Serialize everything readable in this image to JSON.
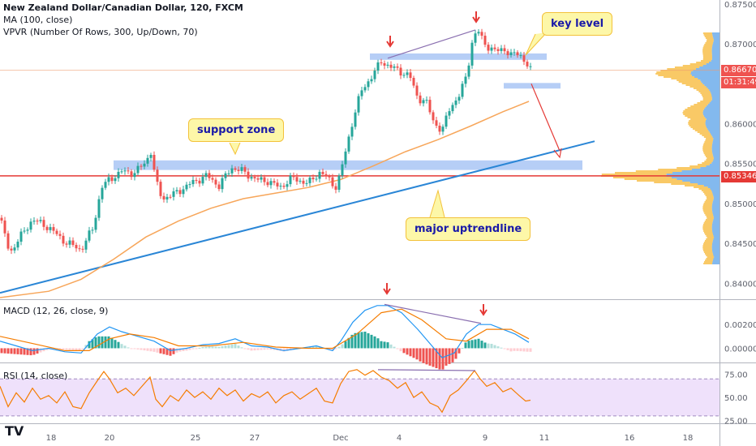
{
  "header": {
    "title": "New Zealand Dollar/Canadian Dollar, 120, FXCM",
    "indicators": [
      "MA (100, close)",
      "VPVR (Number Of Rows, 300, Up/Down, 70)"
    ]
  },
  "annotations": {
    "key_level": "key level",
    "support_zone": "support zone",
    "major_uptrendline": "major uptrendline"
  },
  "price_tags": {
    "last": "0.86670",
    "countdown": "01:31:49",
    "line": "0.85346"
  },
  "macd_label": "MACD (12, 26, close, 9)",
  "rsi_label": "RSI (14, close)",
  "colors": {
    "up": "#26a69a",
    "down": "#ef5350",
    "ma": "#f7a65a",
    "trendline": "#2a86d6",
    "zone": "#a9c6f5",
    "hline": "#e53935",
    "arrow": "#e53935",
    "divergence": "#8a6fb0",
    "macd_line": "#2196f3",
    "signal_line": "#f57c00",
    "rsi_line": "#f57c00",
    "rsi_band": "#efe1fb",
    "vp_up": "#5aa1e8",
    "vp_down": "#f7b733"
  },
  "chart_data": [
    {
      "type": "candlestick",
      "title": "New Zealand Dollar/Canadian Dollar, 120, FXCM",
      "x_ticks": [
        "18",
        "20",
        "25",
        "27",
        "Dec",
        "4",
        "9",
        "11",
        "16",
        "18"
      ],
      "y_ticks": [
        "0.87500",
        "0.87000",
        "0.86500",
        "0.86000",
        "0.85500",
        "0.85000",
        "0.84500",
        "0.84000"
      ],
      "ylim": [
        0.838,
        0.8755
      ],
      "price_path": [
        [
          0,
          0.8482
        ],
        [
          12,
          0.8438
        ],
        [
          25,
          0.8458
        ],
        [
          40,
          0.848
        ],
        [
          60,
          0.847
        ],
        [
          80,
          0.8452
        ],
        [
          100,
          0.8442
        ],
        [
          115,
          0.847
        ],
        [
          125,
          0.852
        ],
        [
          135,
          0.853
        ],
        [
          150,
          0.854
        ],
        [
          165,
          0.8538
        ],
        [
          178,
          0.855
        ],
        [
          186,
          0.8565
        ],
        [
          192,
          0.8528
        ],
        [
          200,
          0.8506
        ],
        [
          215,
          0.8512
        ],
        [
          235,
          0.8525
        ],
        [
          255,
          0.8535
        ],
        [
          270,
          0.8522
        ],
        [
          285,
          0.8545
        ],
        [
          300,
          0.854
        ],
        [
          315,
          0.853
        ],
        [
          330,
          0.8528
        ],
        [
          345,
          0.852
        ],
        [
          360,
          0.8532
        ],
        [
          380,
          0.8525
        ],
        [
          395,
          0.854
        ],
        [
          405,
          0.853
        ],
        [
          415,
          0.852
        ],
        [
          425,
          0.856
        ],
        [
          435,
          0.8605
        ],
        [
          445,
          0.864
        ],
        [
          460,
          0.8662
        ],
        [
          470,
          0.8678
        ],
        [
          480,
          0.8672
        ],
        [
          492,
          0.8666
        ],
        [
          505,
          0.866
        ],
        [
          515,
          0.8632
        ],
        [
          525,
          0.8628
        ],
        [
          535,
          0.8602
        ],
        [
          545,
          0.859
        ],
        [
          555,
          0.8622
        ],
        [
          565,
          0.8632
        ],
        [
          575,
          0.866
        ],
        [
          583,
          0.8708
        ],
        [
          590,
          0.8715
        ],
        [
          598,
          0.87
        ],
        [
          610,
          0.869
        ],
        [
          620,
          0.8695
        ],
        [
          630,
          0.8685
        ],
        [
          640,
          0.869
        ],
        [
          648,
          0.8675
        ],
        [
          654,
          0.8667
        ]
      ],
      "ma_100": [
        [
          0,
          0.8382
        ],
        [
          60,
          0.839
        ],
        [
          100,
          0.8405
        ],
        [
          140,
          0.843
        ],
        [
          180,
          0.8458
        ],
        [
          220,
          0.8478
        ],
        [
          260,
          0.8494
        ],
        [
          300,
          0.8506
        ],
        [
          340,
          0.8513
        ],
        [
          380,
          0.852
        ],
        [
          420,
          0.853
        ],
        [
          460,
          0.8547
        ],
        [
          500,
          0.8565
        ],
        [
          540,
          0.858
        ],
        [
          580,
          0.8597
        ],
        [
          620,
          0.8615
        ],
        [
          652,
          0.8628
        ]
      ],
      "uptrendline": [
        [
          0,
          0.8388
        ],
        [
          733,
          0.8578
        ]
      ],
      "horizontal_line": 0.85346,
      "last_price": 0.8667,
      "zones": [
        {
          "name": "support zone",
          "x": [
            140,
            718
          ],
          "y": [
            0.8542,
            0.8554
          ]
        },
        {
          "name": "key level",
          "x": [
            456,
            674
          ],
          "y": [
            0.868,
            0.8688
          ]
        },
        {
          "name": "lower key level",
          "x": [
            621,
            691
          ],
          "y": [
            0.8644,
            0.8651
          ]
        }
      ],
      "volume_profile_peak": 0.8535
    },
    {
      "type": "macd",
      "title": "MACD (12, 26, close, 9)",
      "y_ticks": [
        "0.00200",
        "0.00000"
      ],
      "ylim": [
        -0.0012,
        0.004
      ],
      "macd": [
        [
          0,
          0.0006
        ],
        [
          20,
          0.0002
        ],
        [
          40,
          -0.0002
        ],
        [
          60,
          0.0
        ],
        [
          80,
          -0.0003
        ],
        [
          100,
          -0.0004
        ],
        [
          120,
          0.0012
        ],
        [
          135,
          0.0018
        ],
        [
          150,
          0.0014
        ],
        [
          170,
          0.001
        ],
        [
          190,
          0.0006
        ],
        [
          210,
          -0.0002
        ],
        [
          230,
          0.0
        ],
        [
          250,
          0.0003
        ],
        [
          270,
          0.0004
        ],
        [
          290,
          0.0008
        ],
        [
          310,
          0.0002
        ],
        [
          330,
          0.0001
        ],
        [
          350,
          -0.0002
        ],
        [
          370,
          0.0
        ],
        [
          390,
          0.0002
        ],
        [
          410,
          -0.0002
        ],
        [
          420,
          0.0006
        ],
        [
          435,
          0.0022
        ],
        [
          450,
          0.0032
        ],
        [
          465,
          0.0036
        ],
        [
          478,
          0.0036
        ],
        [
          495,
          0.003
        ],
        [
          515,
          0.0016
        ],
        [
          530,
          0.0004
        ],
        [
          545,
          -0.0008
        ],
        [
          560,
          -0.0004
        ],
        [
          575,
          0.0012
        ],
        [
          590,
          0.002
        ],
        [
          605,
          0.002
        ],
        [
          620,
          0.0016
        ],
        [
          635,
          0.0012
        ],
        [
          652,
          0.0005
        ]
      ],
      "signal": [
        [
          0,
          0.001
        ],
        [
          40,
          0.0004
        ],
        [
          80,
          -0.0002
        ],
        [
          110,
          -0.0002
        ],
        [
          135,
          0.0008
        ],
        [
          160,
          0.0012
        ],
        [
          190,
          0.0009
        ],
        [
          220,
          0.0002
        ],
        [
          260,
          0.0002
        ],
        [
          300,
          0.0005
        ],
        [
          340,
          0.0001
        ],
        [
          380,
          0.0
        ],
        [
          410,
          0.0
        ],
        [
          440,
          0.0012
        ],
        [
          470,
          0.003
        ],
        [
          495,
          0.0033
        ],
        [
          520,
          0.0024
        ],
        [
          550,
          0.0008
        ],
        [
          575,
          0.0006
        ],
        [
          600,
          0.0016
        ],
        [
          630,
          0.0016
        ],
        [
          652,
          0.0008
        ]
      ]
    },
    {
      "type": "rsi",
      "title": "RSI (14, close)",
      "y_ticks": [
        "75.00",
        "50.00",
        "25.00"
      ],
      "ylim": [
        22,
        86
      ],
      "bands": [
        30,
        70
      ],
      "rsi": [
        [
          0,
          62
        ],
        [
          10,
          40
        ],
        [
          20,
          55
        ],
        [
          30,
          45
        ],
        [
          40,
          60
        ],
        [
          50,
          48
        ],
        [
          60,
          52
        ],
        [
          70,
          44
        ],
        [
          80,
          56
        ],
        [
          90,
          40
        ],
        [
          100,
          38
        ],
        [
          110,
          55
        ],
        [
          120,
          68
        ],
        [
          128,
          78
        ],
        [
          135,
          70
        ],
        [
          145,
          55
        ],
        [
          155,
          60
        ],
        [
          165,
          52
        ],
        [
          175,
          62
        ],
        [
          185,
          72
        ],
        [
          192,
          48
        ],
        [
          200,
          40
        ],
        [
          210,
          52
        ],
        [
          220,
          46
        ],
        [
          230,
          58
        ],
        [
          240,
          50
        ],
        [
          250,
          56
        ],
        [
          260,
          48
        ],
        [
          270,
          60
        ],
        [
          280,
          52
        ],
        [
          290,
          58
        ],
        [
          300,
          46
        ],
        [
          310,
          54
        ],
        [
          320,
          50
        ],
        [
          330,
          56
        ],
        [
          340,
          44
        ],
        [
          350,
          52
        ],
        [
          360,
          56
        ],
        [
          370,
          48
        ],
        [
          380,
          54
        ],
        [
          390,
          60
        ],
        [
          400,
          46
        ],
        [
          410,
          44
        ],
        [
          420,
          65
        ],
        [
          430,
          78
        ],
        [
          440,
          80
        ],
        [
          450,
          74
        ],
        [
          460,
          79
        ],
        [
          470,
          72
        ],
        [
          480,
          68
        ],
        [
          490,
          60
        ],
        [
          500,
          66
        ],
        [
          510,
          50
        ],
        [
          520,
          56
        ],
        [
          530,
          44
        ],
        [
          540,
          40
        ],
        [
          545,
          34
        ],
        [
          555,
          52
        ],
        [
          565,
          58
        ],
        [
          575,
          68
        ],
        [
          585,
          79
        ],
        [
          592,
          70
        ],
        [
          600,
          62
        ],
        [
          610,
          66
        ],
        [
          620,
          56
        ],
        [
          630,
          60
        ],
        [
          640,
          52
        ],
        [
          648,
          46
        ],
        [
          654,
          47
        ]
      ]
    }
  ]
}
